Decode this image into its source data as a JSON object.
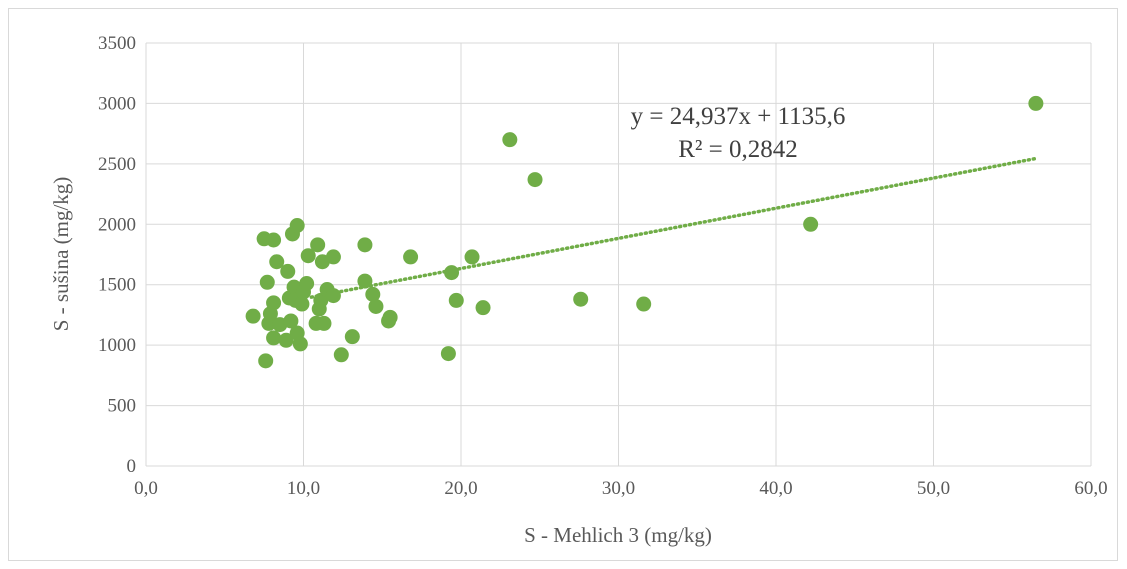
{
  "chart_data": {
    "type": "scatter",
    "title": "",
    "xlabel": "S - Mehlich 3 (mg/kg)",
    "ylabel": "S - sušina (mg/kg)",
    "xlim": [
      0,
      60
    ],
    "ylim": [
      0,
      3500
    ],
    "x_ticks": [
      "0,0",
      "10,0",
      "20,0",
      "30,0",
      "40,0",
      "50,0",
      "60,0"
    ],
    "y_ticks": [
      "0",
      "500",
      "1000",
      "1500",
      "2000",
      "2500",
      "3000",
      "3500"
    ],
    "grid": true,
    "marker_color": "#70ad47",
    "trendline": {
      "type": "linear",
      "slope": 24.937,
      "intercept": 1135.6,
      "x_range": [
        10.5,
        56.5
      ],
      "equation": "y = 24,937x + 1135,6",
      "r_squared": "R² = 0,2842",
      "style": "dotted",
      "color": "#70ad47"
    },
    "points": [
      {
        "x": 6.8,
        "y": 1240
      },
      {
        "x": 7.5,
        "y": 1880
      },
      {
        "x": 7.6,
        "y": 870
      },
      {
        "x": 7.7,
        "y": 1520
      },
      {
        "x": 7.8,
        "y": 1180
      },
      {
        "x": 7.9,
        "y": 1260
      },
      {
        "x": 8.1,
        "y": 1870
      },
      {
        "x": 8.1,
        "y": 1350
      },
      {
        "x": 8.1,
        "y": 1060
      },
      {
        "x": 8.3,
        "y": 1690
      },
      {
        "x": 8.5,
        "y": 1170
      },
      {
        "x": 8.9,
        "y": 1040
      },
      {
        "x": 9.0,
        "y": 1610
      },
      {
        "x": 9.1,
        "y": 1390
      },
      {
        "x": 9.2,
        "y": 1200
      },
      {
        "x": 9.3,
        "y": 1920
      },
      {
        "x": 9.4,
        "y": 1480
      },
      {
        "x": 9.5,
        "y": 1370
      },
      {
        "x": 9.6,
        "y": 1990
      },
      {
        "x": 9.6,
        "y": 1100
      },
      {
        "x": 9.8,
        "y": 1010
      },
      {
        "x": 9.9,
        "y": 1340
      },
      {
        "x": 10.0,
        "y": 1440
      },
      {
        "x": 10.2,
        "y": 1510
      },
      {
        "x": 10.3,
        "y": 1740
      },
      {
        "x": 10.8,
        "y": 1180
      },
      {
        "x": 10.9,
        "y": 1830
      },
      {
        "x": 11.0,
        "y": 1300
      },
      {
        "x": 11.1,
        "y": 1370
      },
      {
        "x": 11.2,
        "y": 1690
      },
      {
        "x": 11.3,
        "y": 1180
      },
      {
        "x": 11.5,
        "y": 1460
      },
      {
        "x": 11.9,
        "y": 1730
      },
      {
        "x": 11.9,
        "y": 1410
      },
      {
        "x": 12.4,
        "y": 920
      },
      {
        "x": 13.1,
        "y": 1070
      },
      {
        "x": 13.9,
        "y": 1830
      },
      {
        "x": 13.9,
        "y": 1530
      },
      {
        "x": 14.4,
        "y": 1420
      },
      {
        "x": 14.6,
        "y": 1320
      },
      {
        "x": 15.4,
        "y": 1200
      },
      {
        "x": 15.5,
        "y": 1230
      },
      {
        "x": 16.8,
        "y": 1730
      },
      {
        "x": 19.2,
        "y": 930
      },
      {
        "x": 19.4,
        "y": 1600
      },
      {
        "x": 19.7,
        "y": 1370
      },
      {
        "x": 20.7,
        "y": 1730
      },
      {
        "x": 21.4,
        "y": 1310
      },
      {
        "x": 23.1,
        "y": 2700
      },
      {
        "x": 24.7,
        "y": 2370
      },
      {
        "x": 27.6,
        "y": 1380
      },
      {
        "x": 31.6,
        "y": 1340
      },
      {
        "x": 42.2,
        "y": 2000
      },
      {
        "x": 56.5,
        "y": 3000
      }
    ]
  }
}
